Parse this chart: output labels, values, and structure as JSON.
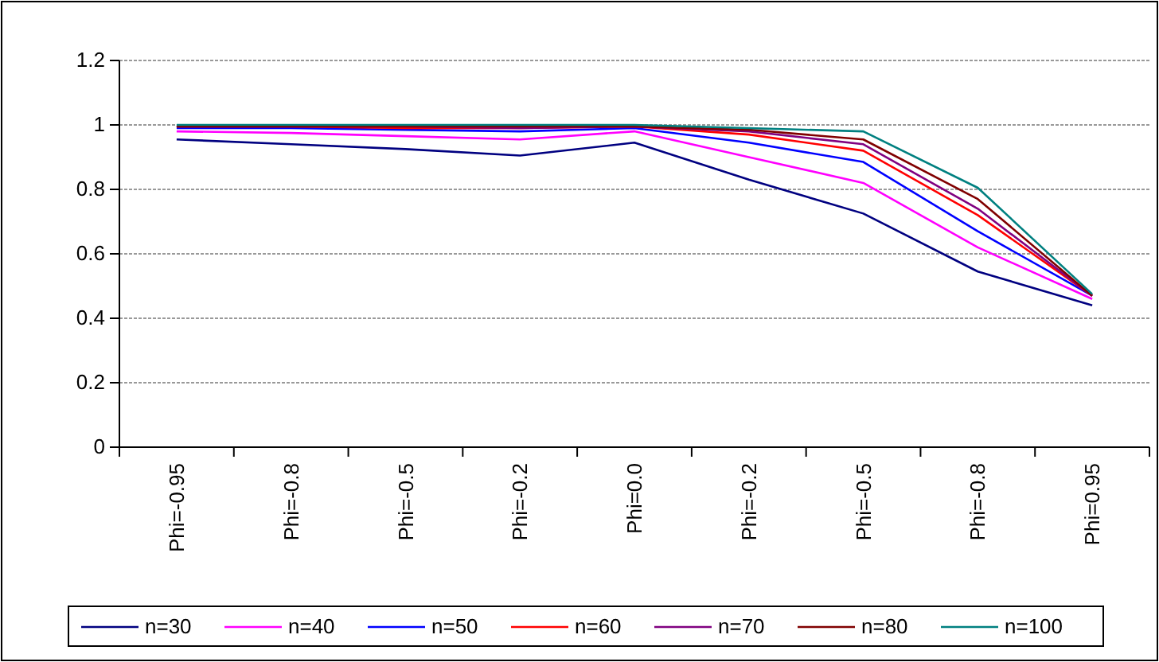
{
  "chart_data": {
    "type": "line",
    "categories": [
      "Phi=-0.95",
      "Phi=-0.8",
      "Phi=-0.5",
      "Phi=-0.2",
      "Phi=0.0",
      "Phi=-0.2",
      "Phi=-0.5",
      "Phi=-0.8",
      "Phi=0.95"
    ],
    "series": [
      {
        "name": "n=30",
        "color": "#000080",
        "values": [
          0.955,
          0.94,
          0.925,
          0.905,
          0.945,
          0.83,
          0.725,
          0.545,
          0.44
        ]
      },
      {
        "name": "n=40",
        "color": "#ff00ff",
        "values": [
          0.98,
          0.975,
          0.965,
          0.955,
          0.98,
          0.9,
          0.82,
          0.62,
          0.46
        ]
      },
      {
        "name": "n=50",
        "color": "#0000ff",
        "values": [
          0.99,
          0.99,
          0.985,
          0.98,
          0.99,
          0.945,
          0.885,
          0.67,
          0.47
        ]
      },
      {
        "name": "n=60",
        "color": "#ff0000",
        "values": [
          0.995,
          0.995,
          0.99,
          0.99,
          0.995,
          0.97,
          0.92,
          0.72,
          0.47
        ]
      },
      {
        "name": "n=70",
        "color": "#800080",
        "values": [
          0.995,
          0.995,
          0.995,
          0.99,
          0.995,
          0.98,
          0.94,
          0.74,
          0.47
        ]
      },
      {
        "name": "n=80",
        "color": "#800000",
        "values": [
          0.995,
          0.995,
          0.995,
          0.995,
          0.995,
          0.985,
          0.955,
          0.77,
          0.47
        ]
      },
      {
        "name": "n=100",
        "color": "#008080",
        "values": [
          1,
          1,
          1,
          1,
          1,
          0.99,
          0.98,
          0.805,
          0.475
        ]
      }
    ],
    "ylim": [
      0,
      1.2
    ],
    "yticks": [
      0,
      0.2,
      0.4,
      0.6,
      0.8,
      1,
      1.2
    ],
    "grid": "y",
    "legend": "bottom",
    "marker": "none",
    "line_style": "solid"
  }
}
